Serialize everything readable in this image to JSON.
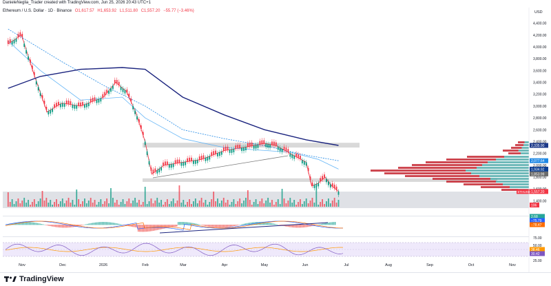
{
  "header": {
    "credit": "DanieleNeglia_Trader created with TradingView.com, Jun 25, 2026 20:43 UTC+1",
    "symbol_title": "Ethereum / U.S. Dollar · 1D · Binance",
    "open": "O1,617.57",
    "high": "H1,653.92",
    "low": "L1,511.80",
    "close": "C1,557.20",
    "change": "−55.77 (−3.46%)"
  },
  "footer": {
    "brand": "TradingView"
  },
  "chart_data": [
    {
      "type": "line",
      "title": "Ethereum / U.S. Dollar · 1D · Binance",
      "currency": "USD",
      "x_ticks": [
        "Nov",
        "Dec",
        "2026",
        "Feb",
        "Mar",
        "Apr",
        "May",
        "Jun",
        "Jul",
        "Aug",
        "Sep",
        "Oct",
        "Nov"
      ],
      "y_ticks": [
        "4,400.00",
        "4,200.00",
        "4,000.00",
        "3,800.00",
        "3,600.00",
        "3,400.00",
        "3,200.00",
        "3,000.00",
        "2,800.00",
        "2,600.00",
        "2,400.00",
        "2,200.00",
        "2,000.00",
        "1,800.00",
        "1,600.00",
        "1,400.00"
      ],
      "ylim": [
        1300,
        4500
      ],
      "scale_labels": [
        {
          "text": "2,335.90",
          "value": 2335.9,
          "color": "#1e3a8a"
        },
        {
          "text": "2,077.64",
          "value": 2077.64,
          "color": "#1e88e5"
        },
        {
          "text": "1,934.92",
          "value": 1934.92,
          "color": "#0b3d91"
        },
        {
          "text": "1,853.99",
          "value": 1853.99,
          "color": "#6b6b6b"
        },
        {
          "text": "1,557.20",
          "value": 1557.2,
          "color": "#f23645"
        }
      ],
      "pair_badge": "ETHUSD",
      "series": [
        {
          "name": "price",
          "color": "#f23645",
          "x": [
            "2025-10-22",
            "2025-11-01",
            "2025-11-10",
            "2025-11-20",
            "2025-12-01",
            "2025-12-15",
            "2026-01-01",
            "2026-01-10",
            "2026-01-18",
            "2026-01-25",
            "2026-02-01",
            "2026-02-06",
            "2026-02-15",
            "2026-03-01",
            "2026-03-15",
            "2026-04-01",
            "2026-04-15",
            "2026-05-01",
            "2026-05-10",
            "2026-05-20",
            "2026-06-01",
            "2026-06-05",
            "2026-06-10",
            "2026-06-15",
            "2026-06-20",
            "2026-06-25"
          ],
          "values": [
            4050,
            4200,
            3550,
            2900,
            3050,
            3000,
            3150,
            3400,
            3250,
            2900,
            2400,
            1850,
            2000,
            2050,
            2100,
            2250,
            2300,
            2370,
            2330,
            2200,
            2050,
            1650,
            1700,
            1800,
            1650,
            1557
          ]
        },
        {
          "name": "MA-dotted",
          "color": "#1e88e5",
          "x": [
            "2025-10-22",
            "2025-12-01",
            "2026-01-01",
            "2026-02-01",
            "2026-03-01",
            "2026-04-01",
            "2026-05-01",
            "2026-06-01",
            "2026-06-25"
          ],
          "values": [
            4300,
            3750,
            3350,
            3000,
            2600,
            2450,
            2330,
            2170,
            2077
          ]
        },
        {
          "name": "MA-light",
          "color": "#64b5f6",
          "x": [
            "2025-10-22",
            "2025-11-15",
            "2025-12-15",
            "2026-01-15",
            "2026-02-01",
            "2026-03-01",
            "2026-04-01",
            "2026-05-01",
            "2026-05-20",
            "2026-06-10",
            "2026-06-25"
          ],
          "values": [
            4100,
            3600,
            3100,
            3150,
            2800,
            2450,
            2300,
            2250,
            2220,
            2100,
            1935
          ]
        },
        {
          "name": "MA-dark",
          "color": "#1a237e",
          "x": [
            "2025-10-22",
            "2025-11-15",
            "2025-12-15",
            "2026-01-15",
            "2026-02-01",
            "2026-03-01",
            "2026-04-01",
            "2026-05-01",
            "2026-06-01",
            "2026-06-25"
          ],
          "values": [
            3300,
            3500,
            3620,
            3650,
            3620,
            3150,
            2850,
            2600,
            2430,
            2336
          ]
        }
      ],
      "zones": [
        {
          "from": 2300,
          "to": 2380
        },
        {
          "from": 1720,
          "to": 1780
        }
      ]
    },
    {
      "type": "bar",
      "name": "volume",
      "label": "106",
      "color": "#f23645"
    },
    {
      "type": "line",
      "name": "MACD",
      "labels": [
        "2.68",
        "−75.79",
        "−78.47"
      ],
      "colors": [
        "#26a69a",
        "#2962ff",
        "#ff6d00"
      ]
    },
    {
      "type": "line",
      "name": "RSI",
      "y_ticks": [
        "75.00",
        "50.00",
        "25.00"
      ],
      "labels": [
        "38.46",
        "30.42"
      ],
      "colors": [
        "#ff9800",
        "#7e57c2"
      ]
    }
  ]
}
